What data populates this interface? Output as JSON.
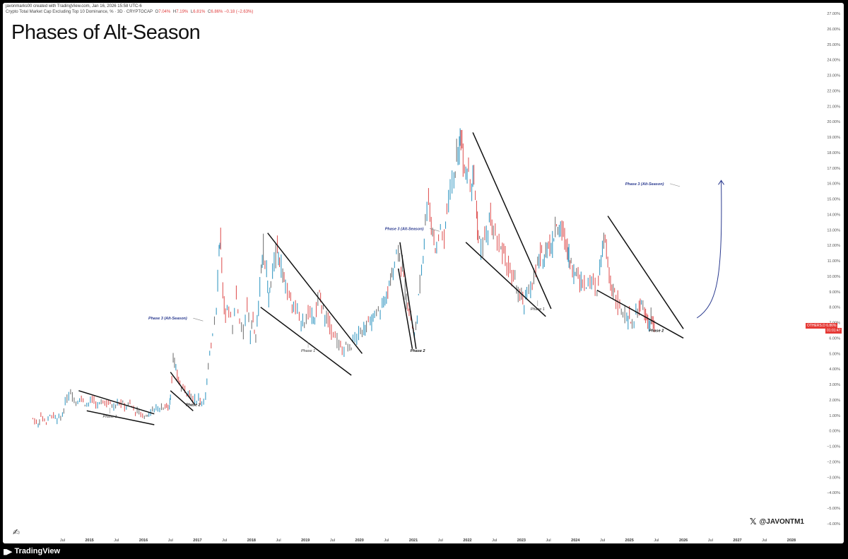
{
  "header": {
    "author_line": "javonmarks00 created with TradingView.com, Jan 16, 2026 15:58 UTC-6",
    "symbol_line": "Crypto Total Market Cap Excluding Top 10 Dominance, % · 3D · CRYPTOCAP",
    "ohlc": [
      {
        "label": "O",
        "value": "7.04%"
      },
      {
        "label": "H",
        "value": "7.19%"
      },
      {
        "label": "L",
        "value": "6.81%"
      },
      {
        "label": "C",
        "value": "6.86%"
      },
      {
        "label": "",
        "value": "−0.18 (−2.63%)"
      }
    ]
  },
  "title": "Phases of Alt-Season",
  "price_tag": {
    "symbol": "OTHERS.D",
    "value": "6.86%",
    "timer": "01:01:47"
  },
  "handle": "@JAVONTM1",
  "footer": {
    "brand": "TradingView"
  },
  "colors": {
    "up": "#3a9bc4",
    "down": "#e05a5a",
    "neutral": "#777777",
    "annotation_blue": "#2a3a8f",
    "tag": "#e53935"
  },
  "chart_data": {
    "type": "line",
    "ylim": [
      -6,
      27
    ],
    "y_ticks": [
      "27.00%",
      "26.00%",
      "25.00%",
      "24.00%",
      "23.00%",
      "22.00%",
      "21.00%",
      "20.00%",
      "19.00%",
      "18.00%",
      "17.00%",
      "16.00%",
      "15.00%",
      "14.00%",
      "13.00%",
      "12.00%",
      "11.00%",
      "10.00%",
      "9.00%",
      "8.00%",
      "7.00%",
      "6.00%",
      "5.00%",
      "4.00%",
      "3.00%",
      "2.00%",
      "1.00%",
      "0.00%",
      "−1.00%",
      "−2.00%",
      "−3.00%",
      "−4.00%",
      "−5.00%",
      "−6.00%"
    ],
    "x_ticks": [
      {
        "label": "Jul",
        "t": 2014.5,
        "bold": false
      },
      {
        "label": "2015",
        "t": 2015.0,
        "bold": true
      },
      {
        "label": "Jul",
        "t": 2015.5,
        "bold": false
      },
      {
        "label": "2016",
        "t": 2016.0,
        "bold": true
      },
      {
        "label": "Jul",
        "t": 2016.5,
        "bold": false
      },
      {
        "label": "2017",
        "t": 2017.0,
        "bold": true
      },
      {
        "label": "Jul",
        "t": 2017.5,
        "bold": false
      },
      {
        "label": "2018",
        "t": 2018.0,
        "bold": true
      },
      {
        "label": "Jul",
        "t": 2018.5,
        "bold": false
      },
      {
        "label": "2019",
        "t": 2019.0,
        "bold": true
      },
      {
        "label": "Jul",
        "t": 2019.5,
        "bold": false
      },
      {
        "label": "2020",
        "t": 2020.0,
        "bold": true
      },
      {
        "label": "Jul",
        "t": 2020.5,
        "bold": false
      },
      {
        "label": "2021",
        "t": 2021.0,
        "bold": true
      },
      {
        "label": "Jul",
        "t": 2021.5,
        "bold": false
      },
      {
        "label": "2022",
        "t": 2022.0,
        "bold": true
      },
      {
        "label": "Jul",
        "t": 2022.5,
        "bold": false
      },
      {
        "label": "2023",
        "t": 2023.0,
        "bold": true
      },
      {
        "label": "Jul",
        "t": 2023.5,
        "bold": false
      },
      {
        "label": "2024",
        "t": 2024.0,
        "bold": true
      },
      {
        "label": "Jul",
        "t": 2024.5,
        "bold": false
      },
      {
        "label": "2025",
        "t": 2025.0,
        "bold": true
      },
      {
        "label": "Jul",
        "t": 2025.5,
        "bold": false
      },
      {
        "label": "2026",
        "t": 2026.0,
        "bold": true
      },
      {
        "label": "Jul",
        "t": 2026.5,
        "bold": false
      },
      {
        "label": "2027",
        "t": 2027.0,
        "bold": true
      },
      {
        "label": "Jul",
        "t": 2027.5,
        "bold": false
      },
      {
        "label": "2028",
        "t": 2028.0,
        "bold": true
      }
    ],
    "series": [
      {
        "points": [
          [
            2013.95,
            0.8
          ],
          [
            2014.05,
            0.4
          ],
          [
            2014.1,
            1.0
          ],
          [
            2014.2,
            0.6
          ],
          [
            2014.3,
            1.1
          ],
          [
            2014.4,
            0.7
          ],
          [
            2014.5,
            1.0
          ],
          [
            2014.55,
            1.8
          ],
          [
            2014.65,
            2.5
          ],
          [
            2014.75,
            1.9
          ],
          [
            2014.85,
            2.1
          ],
          [
            2014.95,
            1.7
          ],
          [
            2015.05,
            2.0
          ],
          [
            2015.15,
            1.6
          ],
          [
            2015.25,
            1.9
          ],
          [
            2015.35,
            1.8
          ],
          [
            2015.45,
            1.6
          ],
          [
            2015.55,
            1.9
          ],
          [
            2015.65,
            1.6
          ],
          [
            2015.75,
            1.7
          ],
          [
            2015.85,
            1.3
          ],
          [
            2015.95,
            1.1
          ],
          [
            2016.05,
            0.9
          ],
          [
            2016.1,
            1.2
          ],
          [
            2016.2,
            1.4
          ],
          [
            2016.3,
            1.5
          ],
          [
            2016.4,
            1.6
          ],
          [
            2016.48,
            1.5
          ],
          [
            2016.5,
            2.2
          ],
          [
            2016.55,
            4.9
          ],
          [
            2016.6,
            3.8
          ],
          [
            2016.65,
            3.3
          ],
          [
            2016.7,
            2.8
          ],
          [
            2016.8,
            2.6
          ],
          [
            2016.88,
            2.3
          ],
          [
            2016.95,
            2.0
          ],
          [
            2017.02,
            2.1
          ],
          [
            2017.08,
            1.9
          ],
          [
            2017.15,
            2.3
          ],
          [
            2017.2,
            4.0
          ],
          [
            2017.28,
            6.5
          ],
          [
            2017.35,
            8.0
          ],
          [
            2017.4,
            11.8
          ],
          [
            2017.43,
            12.5
          ],
          [
            2017.47,
            9.0
          ],
          [
            2017.52,
            7.5
          ],
          [
            2017.58,
            8.0
          ],
          [
            2017.65,
            6.8
          ],
          [
            2017.72,
            8.8
          ],
          [
            2017.78,
            7.2
          ],
          [
            2017.85,
            6.5
          ],
          [
            2017.92,
            8.2
          ],
          [
            2017.98,
            6.0
          ],
          [
            2018.03,
            7.5
          ],
          [
            2018.08,
            5.8
          ],
          [
            2018.13,
            8.0
          ],
          [
            2018.18,
            10.5
          ],
          [
            2018.22,
            11.8
          ],
          [
            2018.28,
            10.2
          ],
          [
            2018.32,
            8.5
          ],
          [
            2018.36,
            9.5
          ],
          [
            2018.42,
            10.8
          ],
          [
            2018.48,
            11.8
          ],
          [
            2018.52,
            11.2
          ],
          [
            2018.58,
            10.2
          ],
          [
            2018.63,
            9.4
          ],
          [
            2018.7,
            8.7
          ],
          [
            2018.78,
            8.0
          ],
          [
            2018.85,
            7.6
          ],
          [
            2018.92,
            7.0
          ],
          [
            2018.98,
            7.2
          ],
          [
            2019.05,
            7.6
          ],
          [
            2019.12,
            7.2
          ],
          [
            2019.2,
            7.8
          ],
          [
            2019.26,
            8.8
          ],
          [
            2019.3,
            8.2
          ],
          [
            2019.36,
            7.4
          ],
          [
            2019.42,
            7.2
          ],
          [
            2019.48,
            6.6
          ],
          [
            2019.55,
            6.2
          ],
          [
            2019.62,
            5.6
          ],
          [
            2019.68,
            5.2
          ],
          [
            2019.75,
            5.6
          ],
          [
            2019.82,
            5.2
          ],
          [
            2019.88,
            5.8
          ],
          [
            2019.95,
            6.1
          ],
          [
            2020.02,
            6.3
          ],
          [
            2020.08,
            6.6
          ],
          [
            2020.13,
            7.0
          ],
          [
            2020.2,
            6.8
          ],
          [
            2020.28,
            7.4
          ],
          [
            2020.35,
            7.8
          ],
          [
            2020.42,
            8.1
          ],
          [
            2020.5,
            8.6
          ],
          [
            2020.55,
            9.4
          ],
          [
            2020.6,
            10.0
          ],
          [
            2020.65,
            11.0
          ],
          [
            2020.72,
            12.0
          ],
          [
            2020.77,
            10.8
          ],
          [
            2020.82,
            10.0
          ],
          [
            2020.87,
            8.5
          ],
          [
            2020.92,
            7.8
          ],
          [
            2020.98,
            6.8
          ],
          [
            2021.02,
            6.0
          ],
          [
            2021.07,
            7.5
          ],
          [
            2021.12,
            9.5
          ],
          [
            2021.18,
            11.5
          ],
          [
            2021.22,
            13.6
          ],
          [
            2021.28,
            15.2
          ],
          [
            2021.33,
            13.4
          ],
          [
            2021.38,
            12.5
          ],
          [
            2021.43,
            11.8
          ],
          [
            2021.5,
            13.2
          ],
          [
            2021.57,
            12.2
          ],
          [
            2021.62,
            14.5
          ],
          [
            2021.68,
            15.5
          ],
          [
            2021.75,
            16.6
          ],
          [
            2021.8,
            17.5
          ],
          [
            2021.85,
            18.0
          ],
          [
            2021.88,
            19.5
          ],
          [
            2021.92,
            17.8
          ],
          [
            2021.97,
            16.8
          ],
          [
            2022.02,
            17.0
          ],
          [
            2022.08,
            16.2
          ],
          [
            2022.12,
            16.6
          ],
          [
            2022.17,
            14.2
          ],
          [
            2022.2,
            12.5
          ],
          [
            2022.25,
            11.8
          ],
          [
            2022.32,
            12.4
          ],
          [
            2022.38,
            12.8
          ],
          [
            2022.43,
            13.7
          ],
          [
            2022.48,
            12.8
          ],
          [
            2022.55,
            12.2
          ],
          [
            2022.62,
            11.8
          ],
          [
            2022.7,
            11.2
          ],
          [
            2022.76,
            10.6
          ],
          [
            2022.82,
            10.0
          ],
          [
            2022.88,
            9.6
          ],
          [
            2022.94,
            9.0
          ],
          [
            2023.0,
            8.6
          ],
          [
            2023.05,
            8.0
          ],
          [
            2023.1,
            9.0
          ],
          [
            2023.17,
            9.3
          ],
          [
            2023.23,
            9.8
          ],
          [
            2023.3,
            10.8
          ],
          [
            2023.35,
            11.3
          ],
          [
            2023.4,
            11.0
          ],
          [
            2023.45,
            11.9
          ],
          [
            2023.5,
            12.2
          ],
          [
            2023.55,
            11.7
          ],
          [
            2023.6,
            12.6
          ],
          [
            2023.65,
            13.4
          ],
          [
            2023.7,
            12.7
          ],
          [
            2023.75,
            13.0
          ],
          [
            2023.8,
            12.4
          ],
          [
            2023.85,
            12.0
          ],
          [
            2023.88,
            11.3
          ],
          [
            2023.92,
            10.7
          ],
          [
            2023.97,
            10.1
          ],
          [
            2024.02,
            10.4
          ],
          [
            2024.08,
            9.6
          ],
          [
            2024.13,
            9.9
          ],
          [
            2024.2,
            9.3
          ],
          [
            2024.27,
            9.8
          ],
          [
            2024.33,
            9.4
          ],
          [
            2024.4,
            9.0
          ],
          [
            2024.45,
            10.4
          ],
          [
            2024.5,
            11.6
          ],
          [
            2024.55,
            12.3
          ],
          [
            2024.6,
            10.8
          ],
          [
            2024.65,
            9.6
          ],
          [
            2024.7,
            9.2
          ],
          [
            2024.75,
            8.5
          ],
          [
            2024.82,
            8.0
          ],
          [
            2024.88,
            7.6
          ],
          [
            2024.95,
            7.2
          ],
          [
            2025.0,
            7.3
          ],
          [
            2025.05,
            6.9
          ],
          [
            2025.12,
            7.5
          ],
          [
            2025.18,
            8.2
          ],
          [
            2025.22,
            8.0
          ],
          [
            2025.28,
            7.6
          ],
          [
            2025.32,
            7.2
          ],
          [
            2025.36,
            6.8
          ],
          [
            2025.4,
            7.3
          ],
          [
            2025.44,
            6.9
          ],
          [
            2025.48,
            6.86
          ]
        ]
      }
    ],
    "annotations": [
      {
        "text": "Phase 1",
        "t": 2015.38,
        "y": 0.85,
        "style": "italic"
      },
      {
        "text": "Phase 2",
        "t": 2016.92,
        "y": 1.6,
        "style": "bold-italic"
      },
      {
        "text": "Phase 3 (Alt-Season)",
        "t": 2016.45,
        "y": 7.2,
        "style": "blue"
      },
      {
        "text": "Phase 1",
        "t": 2019.05,
        "y": 5.1,
        "style": "italic"
      },
      {
        "text": "Phase 3 (Alt-Season)",
        "t": 2020.83,
        "y": 13.0,
        "style": "blue"
      },
      {
        "text": "Phase 2",
        "t": 2021.08,
        "y": 5.1,
        "style": "bold-italic"
      },
      {
        "text": "Phase 1",
        "t": 2023.3,
        "y": 7.8,
        "style": "italic"
      },
      {
        "text": "Phase 3 (Alt-Season)",
        "t": 2025.28,
        "y": 15.9,
        "style": "blue"
      },
      {
        "text": "Phase 2",
        "t": 2025.5,
        "y": 6.4,
        "style": "bold-italic"
      }
    ]
  }
}
